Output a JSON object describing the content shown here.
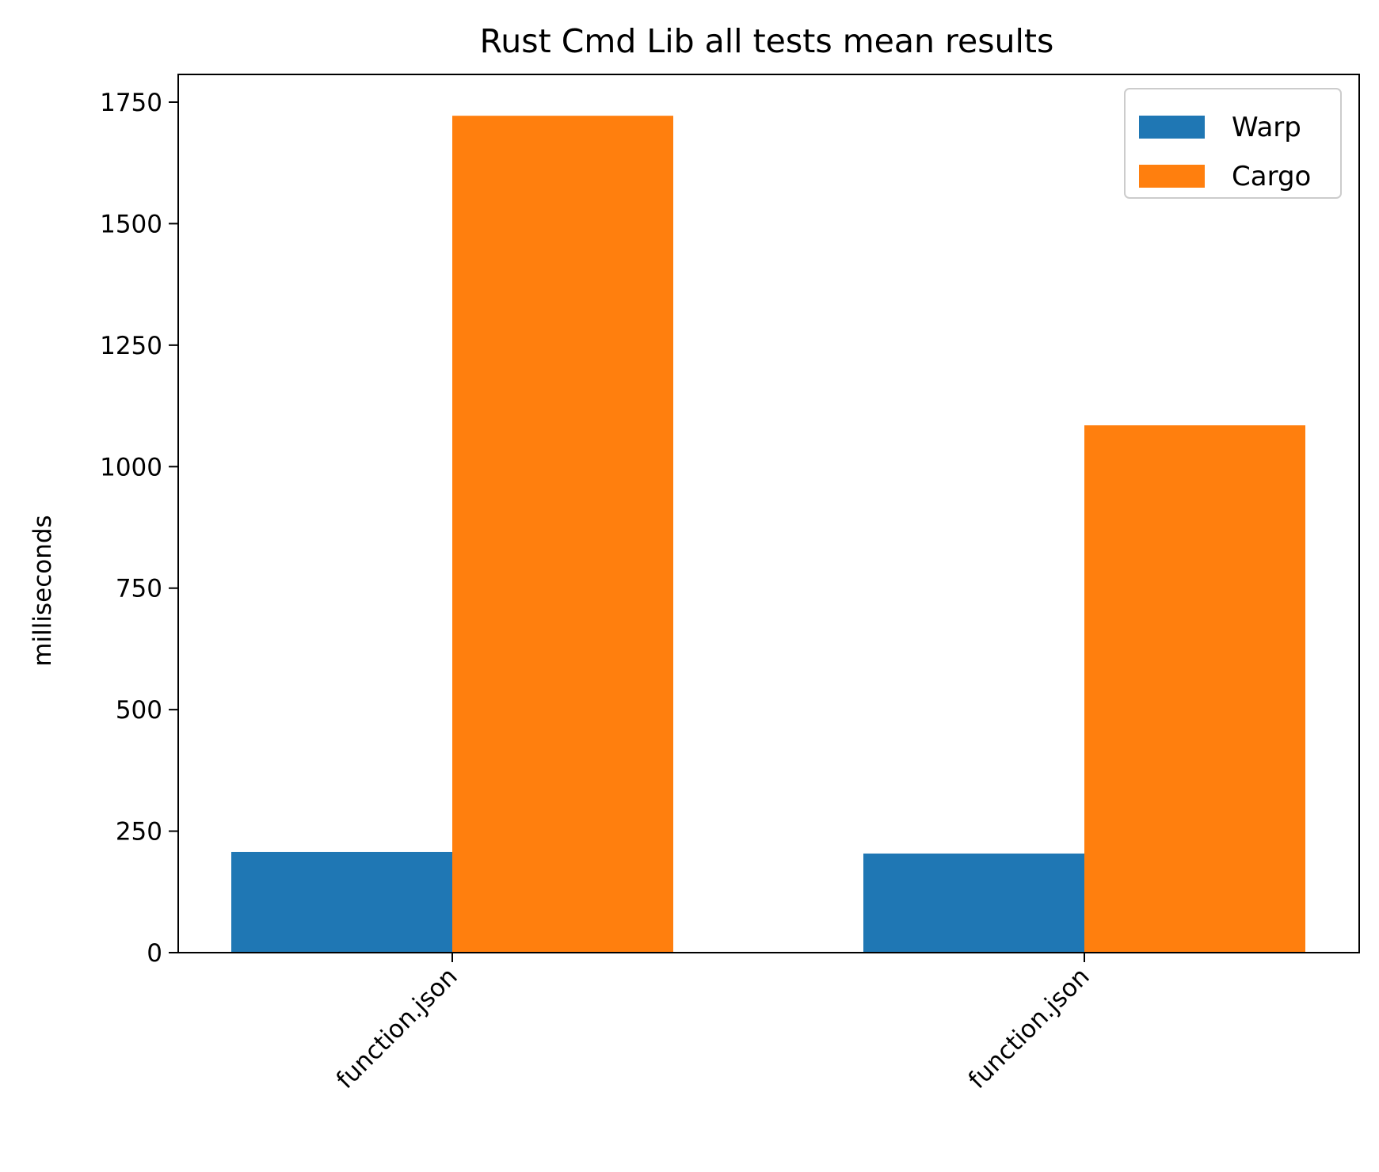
{
  "chart_data": {
    "type": "bar",
    "title": "Rust Cmd Lib all tests mean results",
    "xlabel": "",
    "ylabel": "milliseconds",
    "categories": [
      "function.json",
      "function.json"
    ],
    "series": [
      {
        "name": "Warp",
        "color": "#1f77b4",
        "values": [
          207,
          204
        ]
      },
      {
        "name": "Cargo",
        "color": "#ff7f0e",
        "values": [
          1722,
          1085
        ]
      }
    ],
    "ylim": [
      0,
      1807
    ],
    "yticks": [
      0,
      250,
      500,
      750,
      1000,
      1250,
      1500,
      1750
    ],
    "ytick_labels": [
      "0",
      "250",
      "500",
      "750",
      "1000",
      "1250",
      "1500",
      "1750"
    ],
    "grid": false,
    "legend_position": "upper right"
  }
}
